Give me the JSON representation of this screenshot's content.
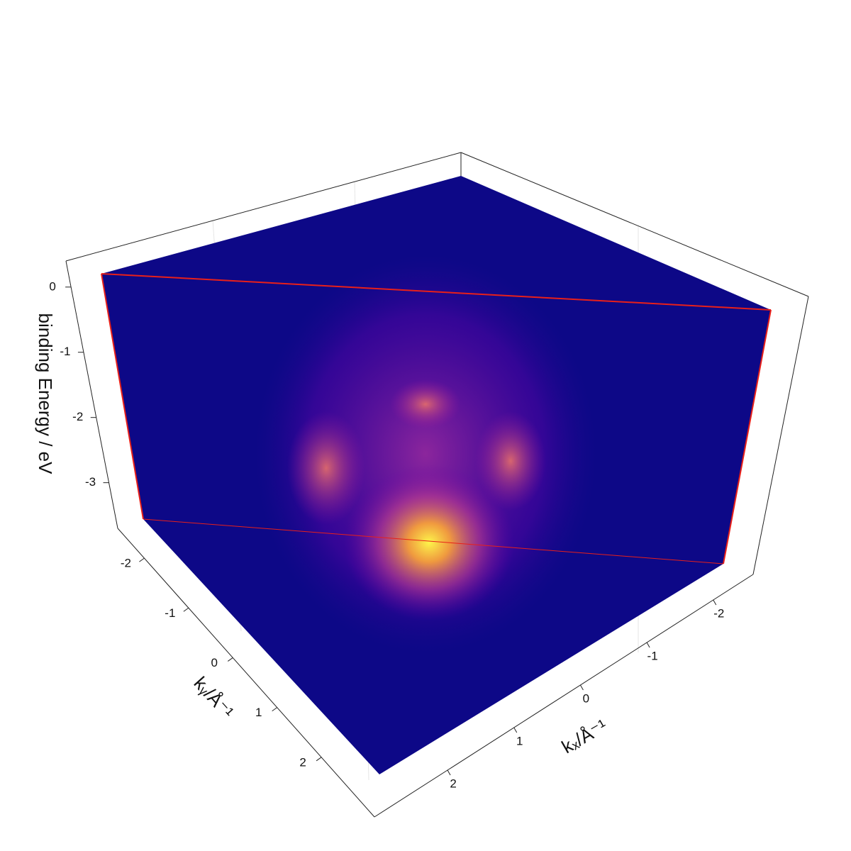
{
  "chart_data": {
    "type": "volume",
    "zlabel": "binding Energy / eV",
    "ylabel": "kᵧ/Å⁻¹",
    "xlabel": "kₓ/Å⁻¹",
    "zlim": [
      -3.7,
      0.4
    ],
    "zticks": [
      0,
      -1,
      -2,
      -3
    ],
    "ylim": [
      -2.6,
      3.2
    ],
    "yticks": [
      -2,
      -1,
      0,
      1,
      2
    ],
    "xlim": [
      3.1,
      -2.6
    ],
    "xticks": [
      2,
      1,
      0,
      -1,
      -2
    ]
  }
}
